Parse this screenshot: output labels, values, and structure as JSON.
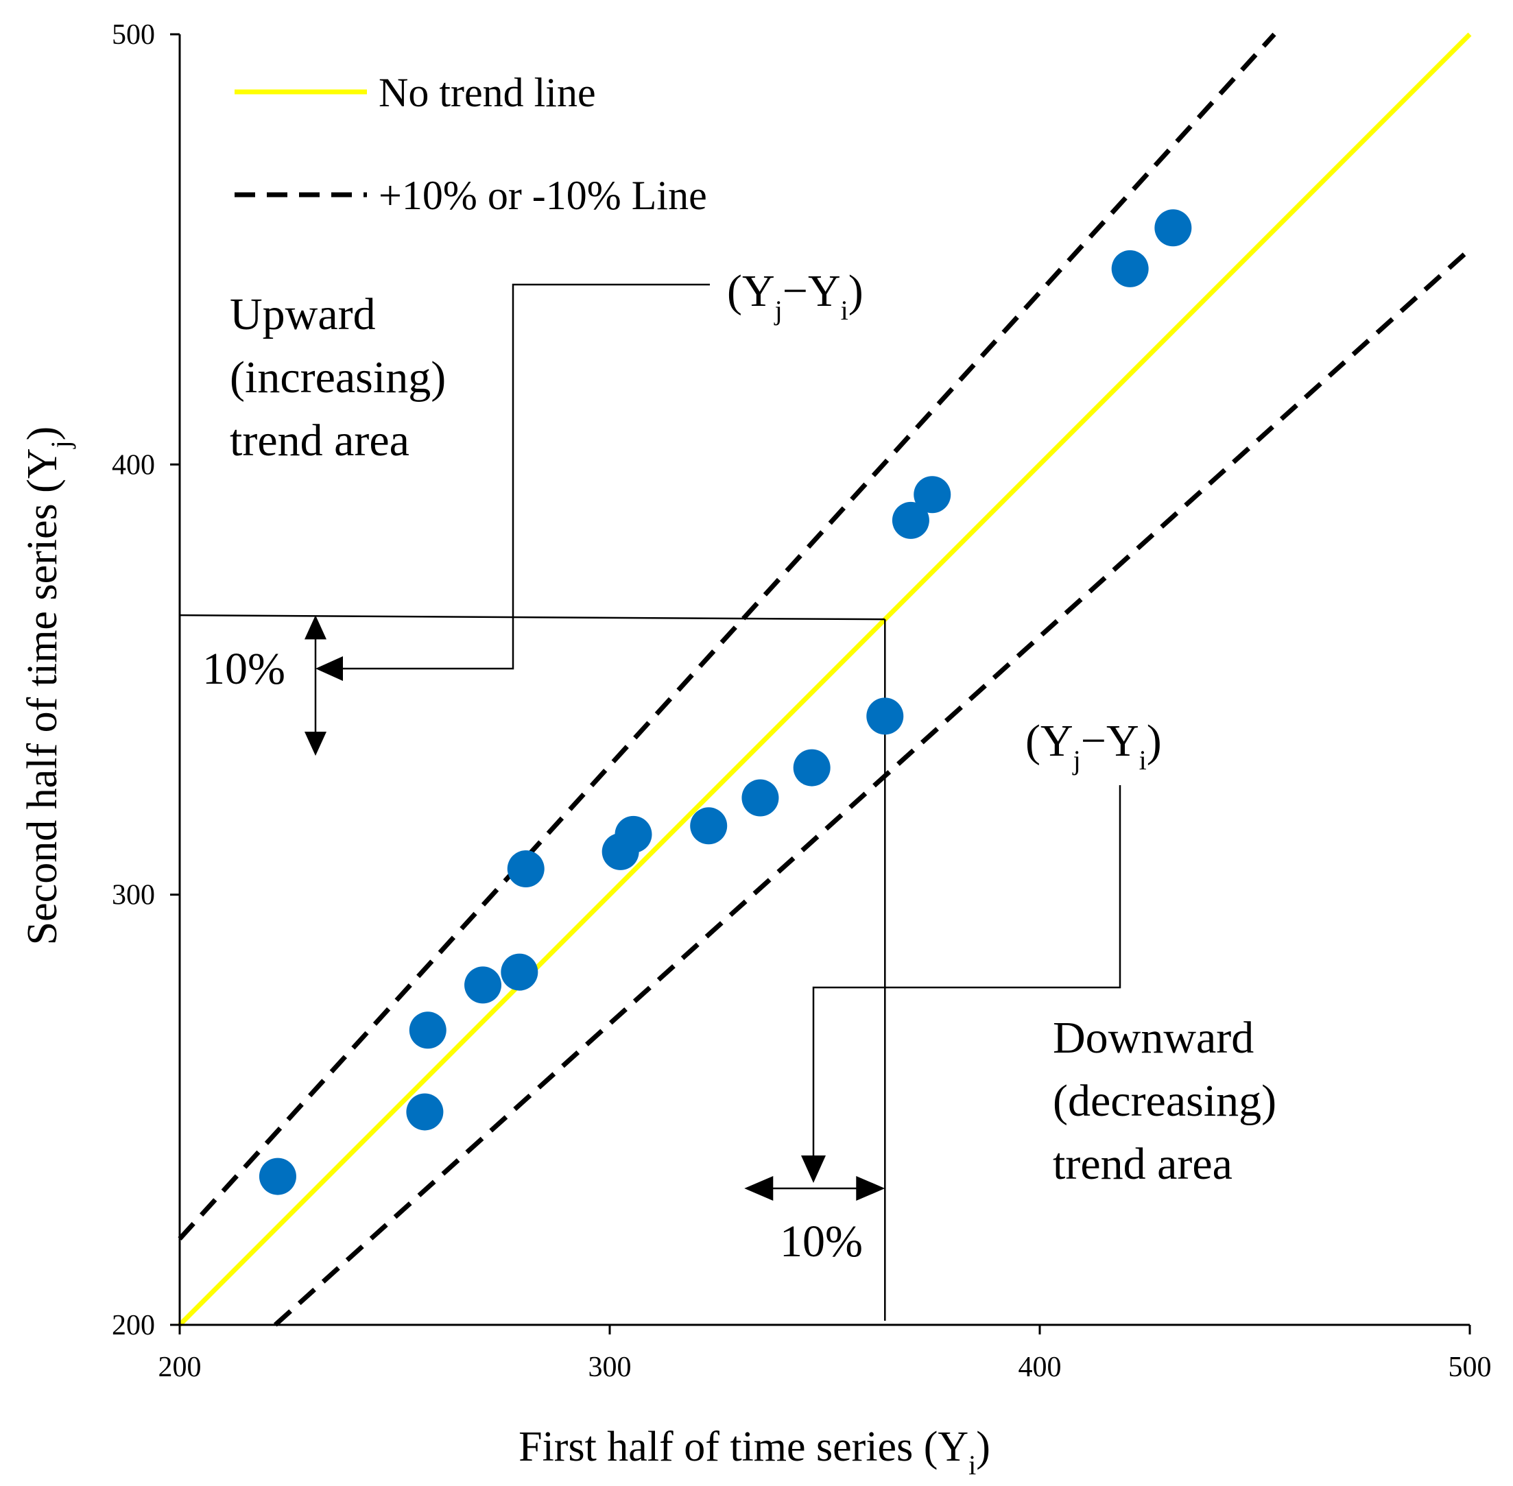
{
  "chart_data": {
    "type": "scatter",
    "xlabel": "First half of time series (Y",
    "xlabel_sub": "i",
    "ylabel": "Second half of time series (Y",
    "ylabel_sub": "j",
    "xlim": [
      200,
      500
    ],
    "ylim": [
      200,
      500
    ],
    "x_ticks": [
      "200",
      "300",
      "400",
      "500"
    ],
    "y_ticks": [
      "200",
      "300",
      "400",
      "500"
    ],
    "grid": false,
    "legend_position": "top-left",
    "legend": [
      {
        "label": "No trend line",
        "style": "solid",
        "color": "#ffff00"
      },
      {
        "label": "+10% or -10% Line",
        "style": "dashed",
        "color": "#000000"
      }
    ],
    "series": [
      {
        "name": "observations",
        "color": "#0070c0",
        "points": [
          [
            222.8,
            234.5
          ],
          [
            257.0,
            249.5
          ],
          [
            257.7,
            268.5
          ],
          [
            270.5,
            279.0
          ],
          [
            279.0,
            282.0
          ],
          [
            280.5,
            306.0
          ],
          [
            302.5,
            310.0
          ],
          [
            305.5,
            314.0
          ],
          [
            323.0,
            316.0
          ],
          [
            335.0,
            322.5
          ],
          [
            347.0,
            329.5
          ],
          [
            364.0,
            341.5
          ],
          [
            370.0,
            387.0
          ],
          [
            375.0,
            393.0
          ],
          [
            421.0,
            445.5
          ],
          [
            431.0,
            455.0
          ]
        ]
      }
    ],
    "reference_lines": [
      {
        "name": "No trend line",
        "slope": 1.0
      },
      {
        "name": "+10% Line",
        "slope": 1.1
      },
      {
        "name": "-10% Line",
        "slope": 0.9
      }
    ],
    "annotations": {
      "upward_area": [
        "Upward",
        "(increasing)",
        "trend area"
      ],
      "downward_area": [
        "Downward",
        "(decreasing)",
        "trend area"
      ],
      "diff_label": {
        "open": "(Y",
        "j": "j",
        "mid": "−Y",
        "i": "i",
        "close": ")"
      },
      "pct_label": "10%",
      "ref_x": 364
    }
  }
}
